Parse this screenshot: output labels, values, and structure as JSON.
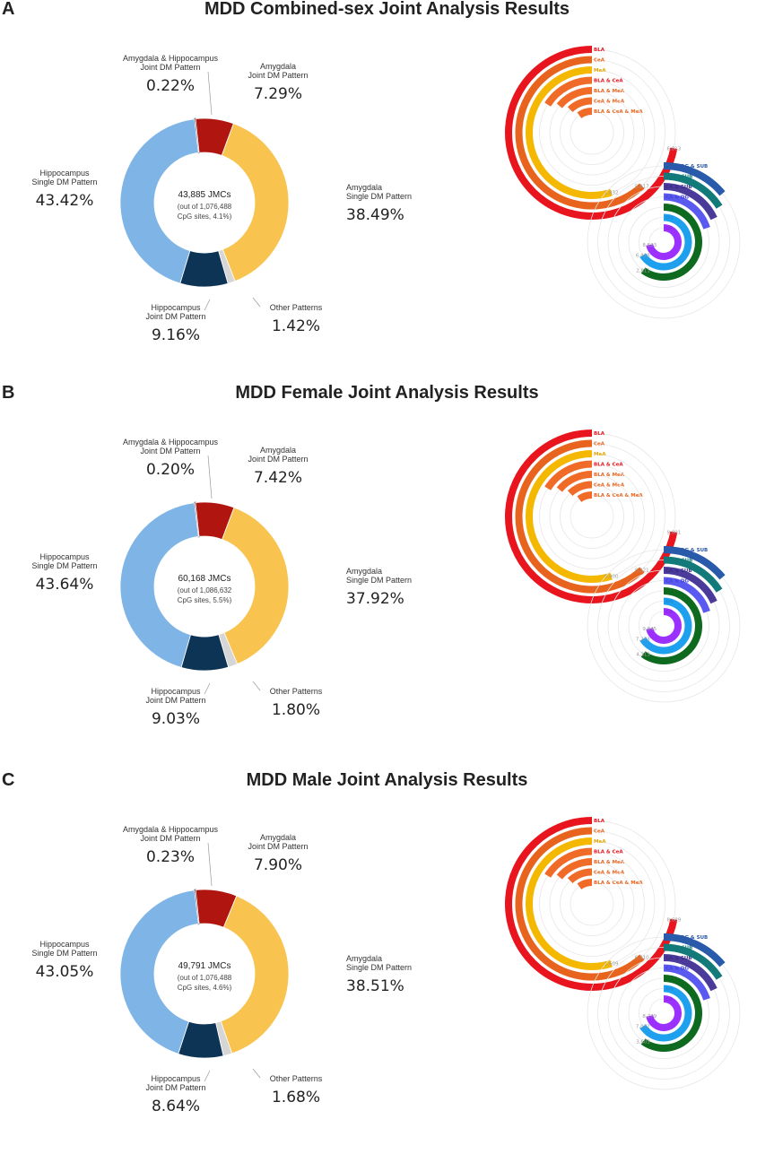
{
  "chart_data": [
    {
      "panel": "A",
      "title": "MDD Combined-sex Joint Analysis Results",
      "type": "pie",
      "center": {
        "line1": "43,885 JMCs",
        "line2": "(out of 1,076,488",
        "line3": "CpG sites, 4.1%)"
      },
      "slices": [
        {
          "name": "Amygdala & Hippocampus Joint DM Pattern",
          "value": 0.22,
          "pct": "0.22%",
          "color": "#1a1a1a",
          "label_lines": [
            "Amygdala & Hippocampus",
            "Joint DM Pattern"
          ]
        },
        {
          "name": "Amygdala Joint DM Pattern",
          "value": 7.29,
          "pct": "7.29%",
          "color": "#b01510",
          "label_lines": [
            "Amygdala",
            "Joint DM Pattern"
          ]
        },
        {
          "name": "Amygdala Single DM Pattern",
          "value": 38.49,
          "pct": "38.49%",
          "color": "#f8c34f",
          "label_lines": [
            "Amygdala",
            "Single DM Pattern"
          ]
        },
        {
          "name": "Other Patterns",
          "value": 1.42,
          "pct": "1.42%",
          "color": "#d6d6d6",
          "label_lines": [
            "Other Patterns"
          ]
        },
        {
          "name": "Hippocampus Joint DM Pattern",
          "value": 9.16,
          "pct": "9.16%",
          "color": "#0d3355",
          "label_lines": [
            "Hippocampus",
            "Joint DM Pattern"
          ]
        },
        {
          "name": "Hippocampus Single DM Pattern",
          "value": 43.42,
          "pct": "43.42%",
          "color": "#7fb5e6",
          "label_lines": [
            "Hippocampus",
            "Single DM Pattern"
          ]
        }
      ],
      "amygdala_rings": {
        "labels": [
          "BLA & CeA & MeA",
          "CeA & MeA",
          "BLA & MeA",
          "BLA & CeA",
          "MeA",
          "CeA",
          "BLA"
        ],
        "values": [
          "",
          "",
          "",
          "",
          "1,832",
          "5,817",
          "6,813"
        ],
        "fractions": [
          0.1,
          0.12,
          0.14,
          0.16,
          0.55,
          0.62,
          0.72
        ]
      },
      "hippocampus_rings": {
        "labels": [
          "CA",
          "DG",
          "SUB",
          "CA & DG",
          "CA & SUB",
          "DG & SUB",
          "CA & DG & SUB"
        ],
        "values": [
          "8,523",
          "6,418",
          "2,811",
          "",
          "",
          "",
          ""
        ],
        "fractions": [
          0.72,
          0.66,
          0.6,
          0.2,
          0.18,
          0.16,
          0.14
        ]
      }
    },
    {
      "panel": "B",
      "title": "MDD Female Joint Analysis Results",
      "type": "pie",
      "center": {
        "line1": "60,168 JMCs",
        "line2": "(out of 1,086,632",
        "line3": "CpG sites, 5.5%)"
      },
      "slices": [
        {
          "name": "Amygdala & Hippocampus Joint DM Pattern",
          "value": 0.2,
          "pct": "0.20%",
          "color": "#1a1a1a",
          "label_lines": [
            "Amygdala & Hippocampus",
            "Joint DM Pattern"
          ]
        },
        {
          "name": "Amygdala Joint DM Pattern",
          "value": 7.42,
          "pct": "7.42%",
          "color": "#b01510",
          "label_lines": [
            "Amygdala",
            "Joint DM Pattern"
          ]
        },
        {
          "name": "Amygdala Single DM Pattern",
          "value": 37.92,
          "pct": "37.92%",
          "color": "#f8c34f",
          "label_lines": [
            "Amygdala",
            "Single DM Pattern"
          ]
        },
        {
          "name": "Other Patterns",
          "value": 1.8,
          "pct": "1.80%",
          "color": "#d6d6d6",
          "label_lines": [
            "Other Patterns"
          ]
        },
        {
          "name": "Hippocampus Joint DM Pattern",
          "value": 9.03,
          "pct": "9.03%",
          "color": "#0d3355",
          "label_lines": [
            "Hippocampus",
            "Joint DM Pattern"
          ]
        },
        {
          "name": "Hippocampus Single DM Pattern",
          "value": 43.64,
          "pct": "43.64%",
          "color": "#7fb5e6",
          "label_lines": [
            "Hippocampus",
            "Single DM Pattern"
          ]
        }
      ],
      "amygdala_rings": {
        "labels": [
          "BLA & CeA & MeA",
          "CeA & MeA",
          "BLA & MeA",
          "BLA & CeA",
          "MeA",
          "CeA",
          "BLA"
        ],
        "values": [
          "",
          "",
          "",
          "",
          "6,900",
          "8,221",
          "9,891"
        ],
        "fractions": [
          0.1,
          0.12,
          0.14,
          0.16,
          0.55,
          0.62,
          0.72
        ]
      },
      "hippocampus_rings": {
        "labels": [
          "CA",
          "DG",
          "SUB",
          "CA & DG",
          "CA & SUB",
          "DG & SUB",
          "CA & DG & SUB"
        ],
        "values": [
          "9,845",
          "7,273",
          "4,313",
          "",
          "",
          "",
          ""
        ],
        "fractions": [
          0.72,
          0.66,
          0.6,
          0.2,
          0.18,
          0.16,
          0.14
        ]
      }
    },
    {
      "panel": "C",
      "title": "MDD Male Joint Analysis Results",
      "type": "pie",
      "center": {
        "line1": "49,791 JMCs",
        "line2": "(out of 1,076,488",
        "line3": "CpG sites, 4.6%)"
      },
      "slices": [
        {
          "name": "Amygdala & Hippocampus Joint DM Pattern",
          "value": 0.23,
          "pct": "0.23%",
          "color": "#1a1a1a",
          "label_lines": [
            "Amygdala & Hippocampus",
            "Joint DM Pattern"
          ]
        },
        {
          "name": "Amygdala Joint DM Pattern",
          "value": 7.9,
          "pct": "7.90%",
          "color": "#b01510",
          "label_lines": [
            "Amygdala",
            "Joint DM Pattern"
          ]
        },
        {
          "name": "Amygdala Single DM Pattern",
          "value": 38.51,
          "pct": "38.51%",
          "color": "#f8c34f",
          "label_lines": [
            "Amygdala",
            "Single DM Pattern"
          ]
        },
        {
          "name": "Other Patterns",
          "value": 1.68,
          "pct": "1.68%",
          "color": "#d6d6d6",
          "label_lines": [
            "Other Patterns"
          ]
        },
        {
          "name": "Hippocampus Joint DM Pattern",
          "value": 8.64,
          "pct": "8.64%",
          "color": "#0d3355",
          "label_lines": [
            "Hippocampus",
            "Joint DM Pattern"
          ]
        },
        {
          "name": "Hippocampus Single DM Pattern",
          "value": 43.05,
          "pct": "43.05%",
          "color": "#7fb5e6",
          "label_lines": [
            "Hippocampus",
            "Single DM Pattern"
          ]
        }
      ],
      "amygdala_rings": {
        "labels": [
          "BLA & CeA & MeA",
          "CeA & MeA",
          "BLA & MeA",
          "BLA & CeA",
          "MeA",
          "CeA",
          "BLA"
        ],
        "values": [
          "",
          "",
          "",
          "",
          "1,609",
          "6,310",
          "8,689"
        ],
        "fractions": [
          0.1,
          0.12,
          0.14,
          0.16,
          0.55,
          0.62,
          0.72
        ]
      },
      "hippocampus_rings": {
        "labels": [
          "CA",
          "DG",
          "SUB",
          "CA & DG",
          "CA & SUB",
          "DG & SUB",
          "CA & DG & SUB"
        ],
        "values": [
          "8,279",
          "7,072",
          "3,603",
          "",
          "",
          "",
          ""
        ],
        "fractions": [
          0.72,
          0.66,
          0.6,
          0.2,
          0.18,
          0.16,
          0.14
        ]
      }
    }
  ],
  "ring_colors": {
    "amygdala": [
      "#f06a28",
      "#f06a28",
      "#f06a28",
      "#f06a28",
      "#f5b800",
      "#e8641e",
      "#e8141e"
    ],
    "amygdala_text": [
      "#e8641e",
      "#e8641e",
      "#e8641e",
      "#e8141e",
      "#e6a800",
      "#e8641e",
      "#e8141e"
    ],
    "hippocampus": [
      "#9b30ff",
      "#1ea0ee",
      "#0e6a1e",
      "#5a5af0",
      "#4a3a9a",
      "#137a7a",
      "#2a5aaa"
    ],
    "hippocampus_text": [
      "#8a2be2",
      "#1a8fd8",
      "#0e6a1e",
      "#4444d8",
      "#3a2a8a",
      "#137a7a",
      "#2a5aaa"
    ]
  }
}
